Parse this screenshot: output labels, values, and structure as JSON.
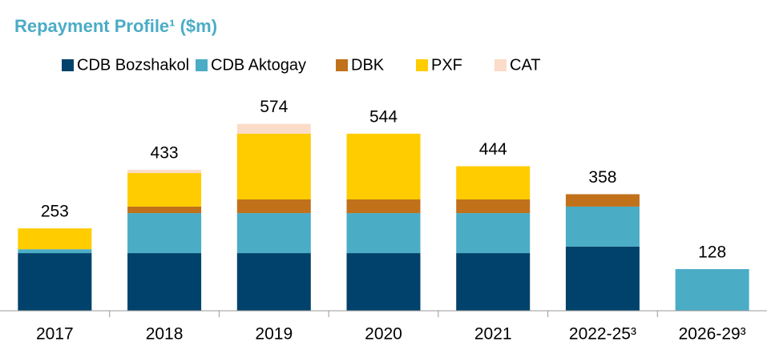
{
  "chart_data": {
    "type": "stacked_bar",
    "title": "Repayment Profile¹ ($m)",
    "categories": [
      "2017",
      "2018",
      "2019",
      "2020",
      "2021",
      "2022-25³",
      "2026-29³"
    ],
    "series": [
      {
        "name": "CDB Bozshakol",
        "color": "#00426b",
        "values": [
          177,
          177,
          177,
          177,
          177,
          197,
          null
        ]
      },
      {
        "name": "CDB Aktogay",
        "color": "#4bacc6",
        "values": [
          12,
          123,
          123,
          123,
          123,
          123,
          128
        ]
      },
      {
        "name": "DBK",
        "color": "#c0711a",
        "values": [
          null,
          20,
          42,
          42,
          42,
          38,
          null
        ]
      },
      {
        "name": "PXF",
        "color": "#ffcc00",
        "values": [
          64,
          103,
          202,
          202,
          102,
          null,
          null
        ]
      },
      {
        "name": "CAT",
        "color": "#fbdcc8",
        "values": [
          null,
          10,
          30,
          null,
          null,
          null,
          null
        ]
      }
    ],
    "totals": [
      253,
      433,
      574,
      544,
      444,
      358,
      128
    ],
    "ylim": [
      0,
      620
    ]
  }
}
